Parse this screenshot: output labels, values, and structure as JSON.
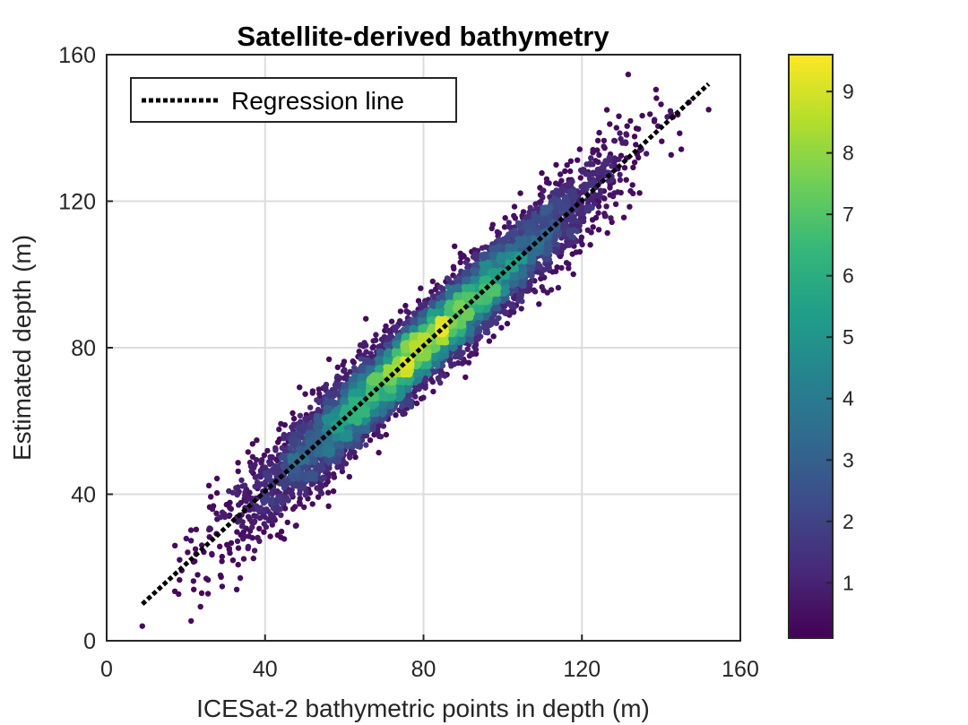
{
  "chart_data": {
    "type": "scatter",
    "title": "Satellite-derived bathymetry",
    "xlabel": "ICESat-2 bathymetric points in depth (m)",
    "ylabel": "Estimated depth (m)",
    "xlim": [
      0,
      160
    ],
    "ylim": [
      0,
      160
    ],
    "xticks": [
      "0",
      "40",
      "80",
      "120",
      "160"
    ],
    "yticks": [
      "0",
      "40",
      "80",
      "120",
      "160"
    ],
    "grid": true,
    "legend": {
      "position": "top-left",
      "entries": [
        "Regression line"
      ]
    },
    "colorbar": {
      "colormap": "viridis",
      "range": [
        0.1,
        9.6
      ],
      "ticks": [
        "1",
        "2",
        "3",
        "4",
        "5",
        "6",
        "7",
        "8",
        "9"
      ],
      "colors": [
        "#440154",
        "#482878",
        "#3e4989",
        "#31688e",
        "#26828e",
        "#1f9e89",
        "#35b779",
        "#6ece58",
        "#b5de2b",
        "#fde725"
      ]
    },
    "regression_line": {
      "x": [
        9,
        152
      ],
      "y": [
        10,
        152
      ],
      "style": "dotted",
      "color": "#000000"
    },
    "density_point_cloud": {
      "x_range": [
        9,
        152
      ],
      "y_range": [
        4,
        152
      ],
      "center_line": {
        "x": [
          9,
          152
        ],
        "y": [
          10,
          152
        ]
      },
      "peak_density_x": 80,
      "points_estimated": 9000,
      "outliers": [
        {
          "x": 9,
          "y": 4
        },
        {
          "x": 152,
          "y": 145
        },
        {
          "x": 22,
          "y": 14
        },
        {
          "x": 24,
          "y": 13
        },
        {
          "x": 147,
          "y": 147
        },
        {
          "x": 143,
          "y": 143
        }
      ]
    }
  }
}
